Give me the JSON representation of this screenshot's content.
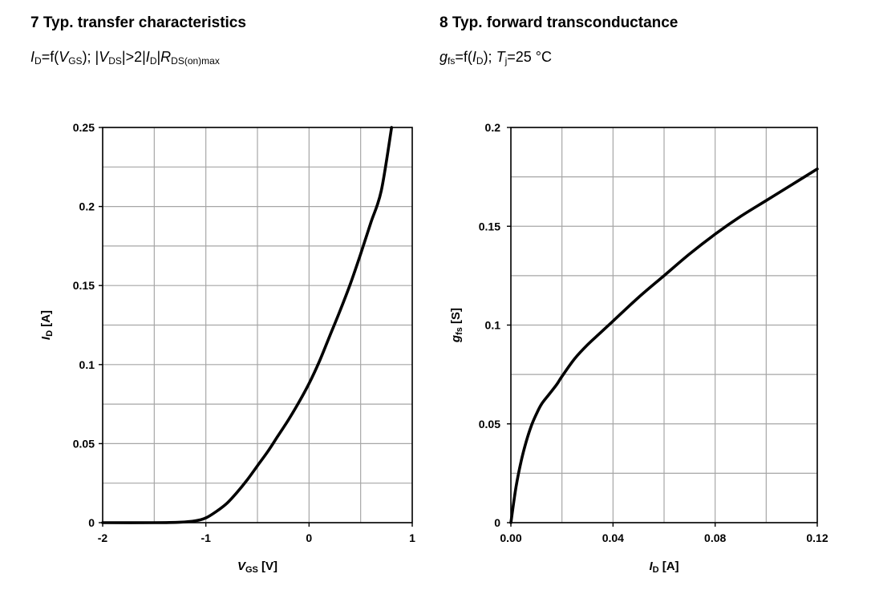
{
  "chart_data": [
    {
      "type": "line",
      "title": "7 Typ. transfer characteristics",
      "subtitle": {
        "y_sym": "I",
        "y_sub": "D",
        "eq": "=f(",
        "x_sym": "V",
        "x_sub": "GS",
        "mid1": "); |",
        "v_sym": "V",
        "v_sub": "DS",
        "mid2": "|>2|",
        "i_sym": "I",
        "i_sub": "D",
        "mid3": "|",
        "r_sym": "R",
        "r_sub": "DS(on)max"
      },
      "xlabel": {
        "sym": "V",
        "sub": "GS",
        "unit": " [V]"
      },
      "ylabel": {
        "sym": "I",
        "sub": "D",
        "unit": " [A]"
      },
      "xlim": [
        -2,
        1
      ],
      "ylim": [
        0,
        0.25
      ],
      "x_ticks": [
        -2,
        -1,
        0,
        1
      ],
      "x_tick_labels": [
        "-2",
        "-1",
        "0",
        "1"
      ],
      "y_ticks": [
        0,
        0.05,
        0.1,
        0.15,
        0.2,
        0.25
      ],
      "y_tick_labels": [
        "0",
        "0.05",
        "0.1",
        "0.15",
        "0.2",
        "0.25"
      ],
      "grid_x": [
        -2,
        -1.5,
        -1,
        -0.5,
        0,
        0.5,
        1
      ],
      "grid_y": [
        0,
        0.025,
        0.05,
        0.075,
        0.1,
        0.125,
        0.15,
        0.175,
        0.2,
        0.225,
        0.25
      ],
      "grid": true,
      "series": [
        {
          "x": [
            -2,
            -1.5,
            -1.25,
            -1.1,
            -1.0,
            -0.9,
            -0.8,
            -0.7,
            -0.6,
            -0.5,
            -0.4,
            -0.3,
            -0.2,
            -0.1,
            0,
            0.1,
            0.2,
            0.3,
            0.4,
            0.5,
            0.6,
            0.7,
            0.8
          ],
          "y": [
            0,
            0,
            0.0003,
            0.0012,
            0.003,
            0.007,
            0.012,
            0.019,
            0.027,
            0.036,
            0.045,
            0.055,
            0.065,
            0.076,
            0.088,
            0.102,
            0.118,
            0.134,
            0.151,
            0.17,
            0.19,
            0.21,
            0.25
          ]
        }
      ]
    },
    {
      "type": "line",
      "title": "8 Typ. forward transconductance",
      "subtitle": {
        "y_sym": "g",
        "y_sub": "fs",
        "eq": "=f(",
        "x_sym": "I",
        "x_sub": "D",
        "mid1": "); ",
        "t_sym": "T",
        "t_sub": "j",
        "mid2": "=25 °C"
      },
      "xlabel": {
        "sym": "I",
        "sub": "D",
        "unit": " [A]"
      },
      "ylabel": {
        "sym": "g",
        "sub": "fs",
        "unit": " [S]"
      },
      "xlim": [
        0,
        0.12
      ],
      "ylim": [
        0,
        0.2
      ],
      "x_ticks": [
        0,
        0.04,
        0.08,
        0.12
      ],
      "x_tick_labels": [
        "0.00",
        "0.04",
        "0.08",
        "0.12"
      ],
      "y_ticks": [
        0,
        0.05,
        0.1,
        0.15,
        0.2
      ],
      "y_tick_labels": [
        "0",
        "0.05",
        "0.1",
        "0.15",
        "0.2"
      ],
      "grid_x": [
        0,
        0.02,
        0.04,
        0.06,
        0.08,
        0.1,
        0.12
      ],
      "grid_y": [
        0,
        0.025,
        0.05,
        0.075,
        0.1,
        0.125,
        0.15,
        0.175,
        0.2
      ],
      "grid": true,
      "series": [
        {
          "x": [
            0,
            0.002,
            0.004,
            0.006,
            0.008,
            0.01,
            0.012,
            0.015,
            0.018,
            0.02,
            0.025,
            0.03,
            0.035,
            0.04,
            0.05,
            0.06,
            0.07,
            0.08,
            0.09,
            0.1,
            0.11,
            0.12
          ],
          "y": [
            0,
            0.018,
            0.031,
            0.041,
            0.049,
            0.055,
            0.06,
            0.065,
            0.07,
            0.074,
            0.083,
            0.09,
            0.096,
            0.102,
            0.114,
            0.125,
            0.136,
            0.146,
            0.155,
            0.163,
            0.171,
            0.179
          ]
        }
      ]
    }
  ]
}
